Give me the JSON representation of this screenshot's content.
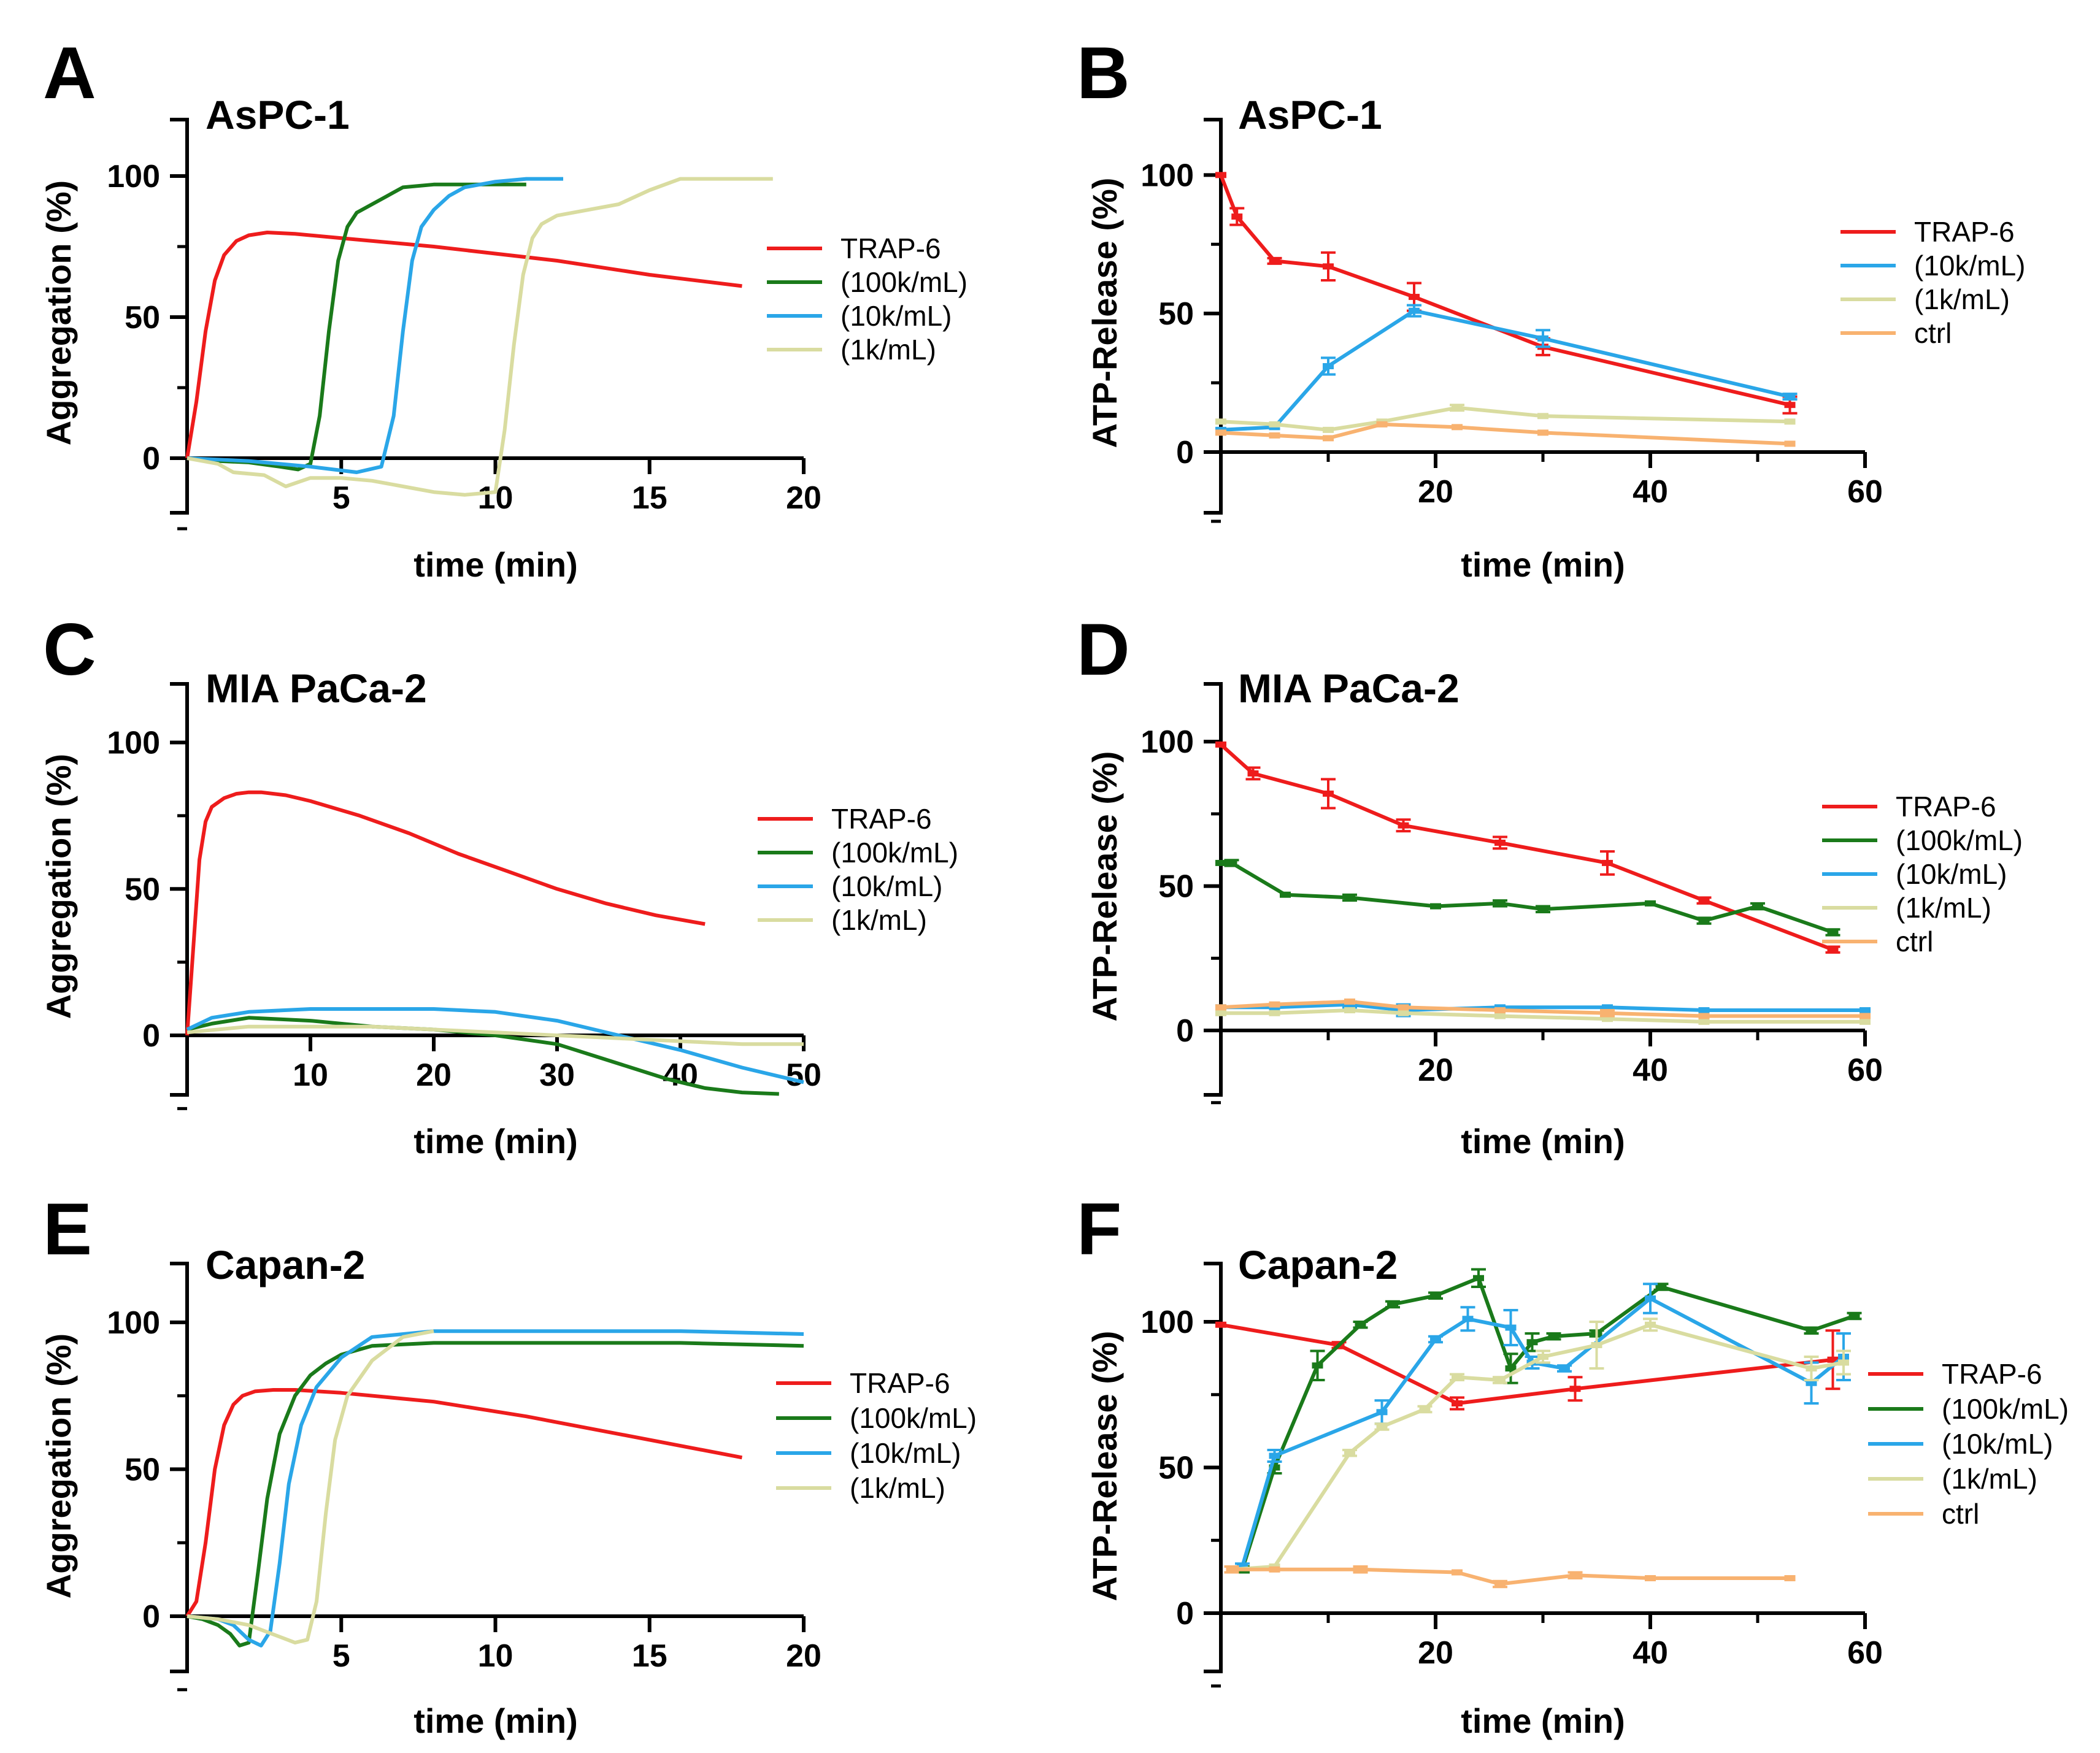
{
  "colors": {
    "TRAP-6": "#ee1c1c",
    "(100k/mL)": "#1a7a1a",
    "(10k/mL)": "#2aa6e8",
    "(1k/mL)": "#d9dca0",
    "ctrl": "#f8b270"
  },
  "chart_data": [
    {
      "panel": "A",
      "type": "line",
      "title": "AsPC-1",
      "xlabel": "time (min)",
      "ylabel": "Aggregation (%)",
      "xlim": [
        0,
        20
      ],
      "ylim": [
        -20,
        120
      ],
      "xticks": [
        5,
        10,
        15,
        20
      ],
      "yticks": [
        0,
        50,
        100
      ],
      "legend": [
        "TRAP-6",
        "(100k/mL)",
        "(10k/mL)",
        "(1k/mL)"
      ],
      "series": [
        {
          "name": "TRAP-6",
          "x": [
            0,
            0.3,
            0.6,
            0.9,
            1.2,
            1.6,
            2,
            2.6,
            3.5,
            5,
            8,
            12,
            15,
            18
          ],
          "y": [
            0,
            20,
            45,
            63,
            72,
            77,
            79,
            80,
            79.5,
            78,
            75,
            70,
            65,
            61
          ]
        },
        {
          "name": "(100k/mL)",
          "x": [
            0,
            1,
            2,
            3,
            3.6,
            4,
            4.3,
            4.6,
            4.9,
            5.2,
            5.5,
            6,
            6.5,
            7,
            8,
            9,
            10,
            11
          ],
          "y": [
            0,
            -1,
            -1.5,
            -3,
            -4,
            -2,
            15,
            45,
            70,
            82,
            87,
            90,
            93,
            96,
            97,
            97,
            97,
            97
          ]
        },
        {
          "name": "(10k/mL)",
          "x": [
            0,
            2,
            4,
            5.5,
            6.3,
            6.7,
            7,
            7.3,
            7.6,
            8,
            8.5,
            9,
            10,
            11,
            12.2
          ],
          "y": [
            0,
            -1,
            -3,
            -5,
            -3,
            15,
            45,
            70,
            82,
            88,
            93,
            96,
            98,
            99,
            99
          ]
        },
        {
          "name": "(1k/mL)",
          "x": [
            0,
            1,
            1.5,
            2.5,
            3.2,
            4,
            5,
            6,
            7,
            8,
            9,
            10,
            10.3,
            10.6,
            10.9,
            11.2,
            11.5,
            12,
            13,
            14,
            15,
            16,
            17,
            19
          ],
          "y": [
            0,
            -2,
            -5,
            -6,
            -10,
            -7,
            -7,
            -8,
            -10,
            -12,
            -13,
            -12,
            10,
            40,
            65,
            78,
            83,
            86,
            88,
            90,
            95,
            99,
            99,
            99
          ]
        }
      ]
    },
    {
      "panel": "B",
      "type": "line",
      "title": "AsPC-1",
      "xlabel": "time (min)",
      "ylabel": "ATP-Release (%)",
      "xlim": [
        0,
        60
      ],
      "ylim": [
        -20,
        120
      ],
      "xticks": [
        20,
        40,
        60
      ],
      "yticks": [
        0,
        50,
        100
      ],
      "legend": [
        "TRAP-6",
        "(10k/mL)",
        "(1k/mL)",
        "ctrl"
      ],
      "series": [
        {
          "name": "TRAP-6",
          "x": [
            0,
            1.5,
            5,
            10,
            18,
            30,
            53
          ],
          "y": [
            100,
            85,
            69,
            67,
            56,
            38,
            17
          ],
          "err": [
            0,
            3,
            1,
            5,
            5,
            3,
            3
          ]
        },
        {
          "name": "(10k/mL)",
          "x": [
            0,
            5,
            10,
            18,
            30,
            53
          ],
          "y": [
            8,
            9,
            31,
            51,
            41,
            20
          ],
          "err": [
            0,
            0,
            3,
            2,
            3,
            1
          ]
        },
        {
          "name": "(1k/mL)",
          "x": [
            0,
            5,
            10,
            15,
            22,
            30,
            53
          ],
          "y": [
            11,
            10,
            8,
            11,
            16,
            13,
            11
          ],
          "err": [
            0,
            0,
            0,
            0,
            1,
            0,
            0
          ]
        },
        {
          "name": "ctrl",
          "x": [
            0,
            5,
            10,
            15,
            22,
            30,
            53
          ],
          "y": [
            7,
            6,
            5,
            10,
            9,
            7,
            3
          ],
          "err": [
            0,
            0,
            0,
            0,
            0,
            0,
            0
          ]
        }
      ]
    },
    {
      "panel": "C",
      "type": "line",
      "title": "MIA PaCa-2",
      "xlabel": "time (min)",
      "ylabel": "Aggregation (%)",
      "xlim": [
        0,
        50
      ],
      "ylim": [
        -20,
        120
      ],
      "xticks": [
        10,
        20,
        30,
        40,
        50
      ],
      "yticks": [
        0,
        50,
        100
      ],
      "legend": [
        "TRAP-6",
        "(100k/mL)",
        "(10k/mL)",
        "(1k/mL)"
      ],
      "series": [
        {
          "name": "TRAP-6",
          "x": [
            0,
            0.5,
            1,
            1.5,
            2,
            3,
            4,
            5,
            6,
            8,
            10,
            14,
            18,
            22,
            26,
            30,
            34,
            38,
            42
          ],
          "y": [
            0,
            30,
            60,
            73,
            78,
            81,
            82.5,
            83,
            83,
            82,
            80,
            75,
            69,
            62,
            56,
            50,
            45,
            41,
            38
          ]
        },
        {
          "name": "(100k/mL)",
          "x": [
            0,
            2,
            5,
            10,
            15,
            20,
            25,
            30,
            33,
            36,
            39,
            42,
            45,
            48
          ],
          "y": [
            2,
            4,
            6,
            5,
            3,
            2,
            0,
            -3,
            -7,
            -11,
            -15,
            -18,
            -19.5,
            -20
          ]
        },
        {
          "name": "(10k/mL)",
          "x": [
            0,
            2,
            5,
            10,
            15,
            20,
            25,
            30,
            35,
            40,
            45,
            50
          ],
          "y": [
            2,
            6,
            8,
            9,
            9,
            9,
            8,
            5,
            0,
            -5,
            -11,
            -16
          ]
        },
        {
          "name": "(1k/mL)",
          "x": [
            0,
            5,
            10,
            15,
            20,
            25,
            30,
            35,
            40,
            45,
            50
          ],
          "y": [
            1,
            3,
            3,
            3,
            2,
            1,
            0,
            -1,
            -2,
            -3,
            -3
          ]
        }
      ]
    },
    {
      "panel": "D",
      "type": "line",
      "title": "MIA  PaCa-2",
      "xlabel": "time (min)",
      "ylabel": "ATP-Release (%)",
      "xlim": [
        0,
        60
      ],
      "ylim": [
        -20,
        120
      ],
      "xticks": [
        20,
        40,
        60
      ],
      "yticks": [
        0,
        50,
        100
      ],
      "legend": [
        "TRAP-6",
        "(100k/mL)",
        "(10k/mL)",
        "(1k/mL)",
        "ctrl"
      ],
      "series": [
        {
          "name": "TRAP-6",
          "x": [
            0,
            3,
            10,
            17,
            26,
            36,
            45,
            57
          ],
          "y": [
            99,
            89,
            82,
            71,
            65,
            58,
            45,
            28
          ],
          "err": [
            0,
            2,
            5,
            2,
            2,
            4,
            1,
            1
          ]
        },
        {
          "name": "(100k/mL)",
          "x": [
            0,
            1,
            6,
            12,
            20,
            26,
            30,
            40,
            45,
            50,
            57
          ],
          "y": [
            58,
            58,
            47,
            46,
            43,
            44,
            42,
            44,
            38,
            43,
            34
          ],
          "err": [
            0,
            1,
            0,
            1,
            0,
            1,
            1,
            0,
            1,
            1,
            1
          ]
        },
        {
          "name": "(10k/mL)",
          "x": [
            0,
            5,
            12,
            17,
            26,
            36,
            45,
            60
          ],
          "y": [
            8,
            8,
            9,
            7,
            8,
            8,
            7,
            7
          ],
          "err": [
            0,
            0,
            1,
            2,
            0,
            0,
            0,
            0
          ]
        },
        {
          "name": "(1k/mL)",
          "x": [
            0,
            5,
            12,
            17,
            26,
            36,
            45,
            60
          ],
          "y": [
            6,
            6,
            7,
            6,
            5,
            4,
            3,
            3
          ],
          "err": [
            0,
            0,
            0,
            0,
            0,
            0,
            0,
            0
          ]
        },
        {
          "name": "ctrl",
          "x": [
            0,
            5,
            12,
            17,
            26,
            36,
            45,
            60
          ],
          "y": [
            8,
            9,
            10,
            8,
            7,
            6,
            5,
            5
          ],
          "err": [
            0,
            0,
            0,
            0,
            0,
            1,
            0,
            0
          ]
        }
      ]
    },
    {
      "panel": "E",
      "type": "line",
      "title": "Capan-2",
      "xlabel": "time (min)",
      "ylabel": "Aggregation (%)",
      "xlim": [
        0,
        20
      ],
      "ylim": [
        -20,
        120
      ],
      "xticks": [
        5,
        10,
        15,
        20
      ],
      "yticks": [
        0,
        50,
        100
      ],
      "legend": [
        "TRAP-6",
        "(100k/mL)",
        "(10k/mL)",
        "(1k/mL)"
      ],
      "series": [
        {
          "name": "TRAP-6",
          "x": [
            0,
            0.3,
            0.6,
            0.9,
            1.2,
            1.5,
            1.8,
            2.2,
            2.8,
            3.5,
            5,
            8,
            11,
            14,
            18
          ],
          "y": [
            0,
            5,
            25,
            50,
            65,
            72,
            75,
            76.5,
            77,
            77,
            76,
            73,
            68,
            62,
            54
          ]
        },
        {
          "name": "(100k/mL)",
          "x": [
            0,
            0.5,
            1,
            1.4,
            1.7,
            2,
            2.3,
            2.6,
            3,
            3.5,
            4,
            4.5,
            5,
            6,
            8,
            12,
            16,
            20
          ],
          "y": [
            0,
            -1,
            -3,
            -6,
            -10,
            -9,
            15,
            40,
            62,
            75,
            82,
            86,
            89,
            92,
            93,
            93,
            93,
            92
          ]
        },
        {
          "name": "(10k/mL)",
          "x": [
            0,
            1,
            1.5,
            2,
            2.4,
            2.7,
            3,
            3.3,
            3.7,
            4.2,
            5,
            6,
            8,
            12,
            16,
            20
          ],
          "y": [
            0,
            -1,
            -3,
            -8,
            -10,
            -5,
            18,
            45,
            65,
            78,
            88,
            95,
            97,
            97,
            97,
            96
          ]
        },
        {
          "name": "(1k/mL)",
          "x": [
            0,
            1,
            2,
            3,
            3.5,
            3.9,
            4.2,
            4.5,
            4.8,
            5.2,
            6,
            7,
            8
          ],
          "y": [
            0,
            -1,
            -3,
            -7,
            -9,
            -8,
            5,
            35,
            60,
            75,
            87,
            95,
            97
          ]
        }
      ]
    },
    {
      "panel": "F",
      "type": "line",
      "title": "Capan-2",
      "xlabel": "time (min)",
      "ylabel": "ATP-Release (%)",
      "xlim": [
        0,
        60
      ],
      "ylim": [
        -20,
        120
      ],
      "xticks": [
        20,
        40,
        60
      ],
      "yticks": [
        0,
        50,
        100
      ],
      "legend": [
        "TRAP-6",
        "(100k/mL)",
        "(10k/mL)",
        "(1k/mL)",
        "ctrl"
      ],
      "series": [
        {
          "name": "TRAP-6",
          "x": [
            0,
            11,
            22,
            33,
            57
          ],
          "y": [
            99,
            92,
            72,
            77,
            87
          ],
          "err": [
            0,
            1,
            2,
            4,
            10
          ]
        },
        {
          "name": "(100k/mL)",
          "x": [
            1,
            2,
            5,
            9,
            13,
            16,
            20,
            24,
            27,
            29,
            31,
            35,
            41,
            55,
            59
          ],
          "y": [
            15,
            15,
            50,
            85,
            99,
            106,
            109,
            115,
            84,
            93,
            95,
            96,
            112,
            97,
            102
          ],
          "err": [
            1,
            1,
            2,
            5,
            1,
            1,
            1,
            3,
            5,
            3,
            1,
            1,
            1,
            1,
            1
          ]
        },
        {
          "name": "(10k/mL)",
          "x": [
            1,
            2,
            5,
            15,
            20,
            23,
            27,
            29,
            32,
            40,
            55,
            58
          ],
          "y": [
            15,
            16,
            54,
            69,
            94,
            101,
            98,
            86,
            84,
            108,
            79,
            88
          ],
          "err": [
            1,
            1,
            2,
            4,
            1,
            4,
            6,
            2,
            1,
            5,
            7,
            8
          ]
        },
        {
          "name": "(1k/mL)",
          "x": [
            1,
            5,
            12,
            15,
            19,
            22,
            26,
            30,
            35,
            40,
            55,
            58
          ],
          "y": [
            15,
            16,
            55,
            64,
            70,
            81,
            80,
            88,
            92,
            99,
            84,
            86
          ],
          "err": [
            0,
            0,
            1,
            1,
            1,
            1,
            1,
            2,
            8,
            2,
            4,
            4
          ]
        },
        {
          "name": "ctrl",
          "x": [
            1,
            5,
            13,
            22,
            26,
            33,
            40,
            53
          ],
          "y": [
            15,
            15,
            15,
            14,
            10,
            13,
            12,
            12
          ],
          "err": [
            1,
            0,
            1,
            0,
            1,
            1,
            0,
            0
          ]
        }
      ]
    }
  ]
}
